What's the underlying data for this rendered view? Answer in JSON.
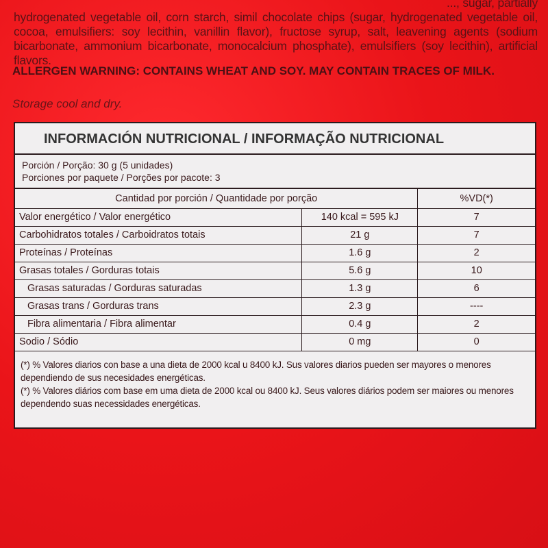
{
  "ingredients": "hydrogenated vegetable oil, corn starch, simil chocolate chips (sugar, hydrogenated vegetable oil, cocoa, emulsifiers: soy lecithin, vanillin flavor), fructose syrup, salt, leavening agents (sodium bicarbonate, ammonium bicarbonate, monocalcium phosphate), emulsifiers (soy lecithin), artificial flavors.",
  "ingredients_partial_top": "..., sugar, partially",
  "allergen": "ALLERGEN WARNING: CONTAINS WHEAT AND SOY.  MAY CONTAIN TRACES OF MILK.",
  "storage": "Storage cool and dry.",
  "label": {
    "title": "INFORMACIÓN NUTRICIONAL / INFORMAÇÃO NUTRICIONAL",
    "portion": "Porción / Porção: 30 g  (5 unidades)",
    "portions_per_pack": "Porciones por paquete  / Porções por pacote: 3",
    "header": {
      "qty": "Cantidad por porción / Quantidade  por porção",
      "vd": "%VD(*)"
    },
    "rows": [
      {
        "name": "Valor energético / Valor energético",
        "value": "140 kcal = 595 kJ",
        "vd": "7"
      },
      {
        "name": "Carbohidratos totales /  Carboidratos  totais",
        "value": "21 g",
        "vd": "7"
      },
      {
        "name": "Proteínas / Proteínas",
        "value": "1.6  g",
        "vd": "2"
      },
      {
        "name": "Grasas totales / Gorduras totais",
        "value": "5.6  g",
        "vd": "10"
      },
      {
        "name": "Grasas saturadas / Gorduras saturadas",
        "value": "1.3  g",
        "vd": "6"
      },
      {
        "name": "Grasas trans / Gorduras trans",
        "value": "2.3  g",
        "vd": "----"
      },
      {
        "name": "Fibra alimentaria / Fibra alimentar",
        "value": "0.4  g",
        "vd": "2"
      },
      {
        "name": "Sodio / Sódio",
        "value": "0 mg",
        "vd": "0"
      }
    ],
    "footnote_es": "(*) % Valores diarios con base a una dieta de 2000 kcal u 8400 kJ. Sus valores diarios pueden ser mayores o menores dependiendo de sus necesidades energéticas.",
    "footnote_pt": "(*) % Valores diários com base em uma dieta de 2000 kcal ou 8400 kJ.  Seus valores diários podem ser maiores ou menores dependendo suas necessidades energéticas."
  }
}
